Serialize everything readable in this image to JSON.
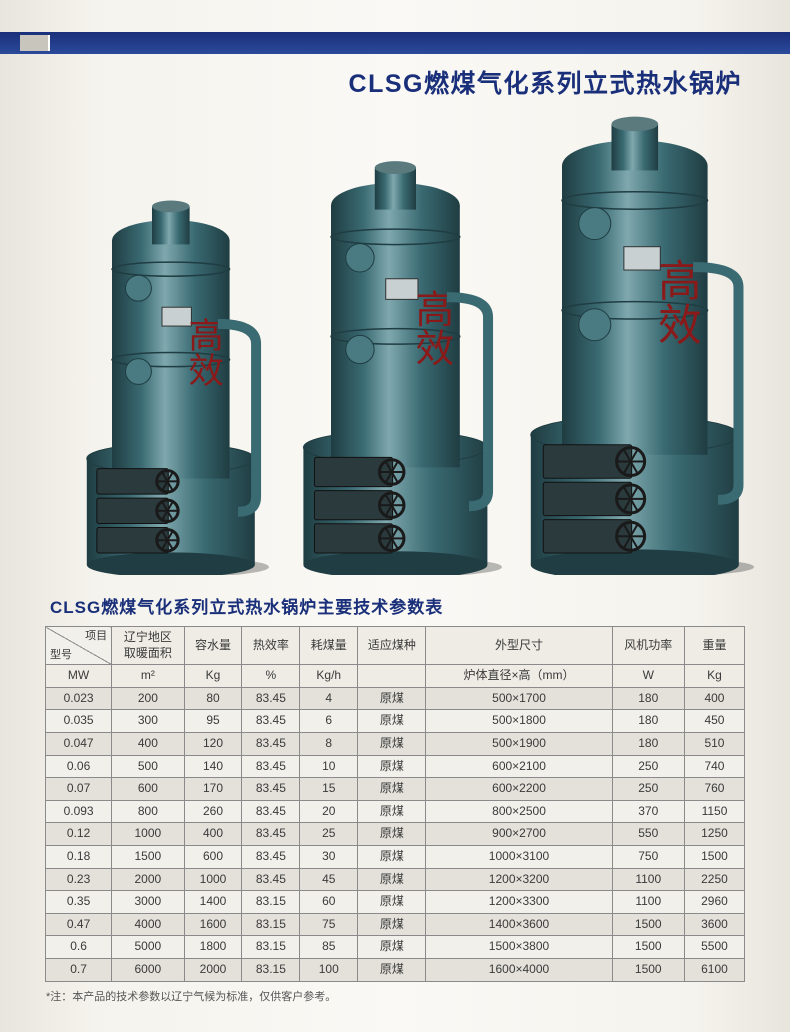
{
  "title": "CLSG燃煤气化系列立式热水锅炉",
  "tableTitle": "CLSG燃煤气化系列立式热水锅炉主要技术参数表",
  "footnote": "*注：本产品的技术参数以辽宁气候为标准，仅供客户参考。",
  "header": {
    "diagTop": "项目",
    "diagBottom": "型号",
    "c1": "辽宁地区\n取暖面积",
    "c2": "容水量",
    "c3": "热效率",
    "c4": "耗煤量",
    "c5": "适应煤种",
    "c6": "外型尺寸",
    "c7": "风机功率",
    "c8": "重量"
  },
  "units": {
    "u0": "MW",
    "u1": "m²",
    "u2": "Kg",
    "u3": "%",
    "u4": "Kg/h",
    "u5": "",
    "u6": "炉体直径×高（mm）",
    "u7": "W",
    "u8": "Kg"
  },
  "rows": [
    {
      "mw": "0.023",
      "area": "200",
      "water": "80",
      "eff": "83.45",
      "coal": "4",
      "type": "原煤",
      "dim": "500×1700",
      "fan": "180",
      "wt": "400"
    },
    {
      "mw": "0.035",
      "area": "300",
      "water": "95",
      "eff": "83.45",
      "coal": "6",
      "type": "原煤",
      "dim": "500×1800",
      "fan": "180",
      "wt": "450"
    },
    {
      "mw": "0.047",
      "area": "400",
      "water": "120",
      "eff": "83.45",
      "coal": "8",
      "type": "原煤",
      "dim": "500×1900",
      "fan": "180",
      "wt": "510"
    },
    {
      "mw": "0.06",
      "area": "500",
      "water": "140",
      "eff": "83.45",
      "coal": "10",
      "type": "原煤",
      "dim": "600×2100",
      "fan": "250",
      "wt": "740"
    },
    {
      "mw": "0.07",
      "area": "600",
      "water": "170",
      "eff": "83.45",
      "coal": "15",
      "type": "原煤",
      "dim": "600×2200",
      "fan": "250",
      "wt": "760"
    },
    {
      "mw": "0.093",
      "area": "800",
      "water": "260",
      "eff": "83.45",
      "coal": "20",
      "type": "原煤",
      "dim": "800×2500",
      "fan": "370",
      "wt": "1150"
    },
    {
      "mw": "0.12",
      "area": "1000",
      "water": "400",
      "eff": "83.45",
      "coal": "25",
      "type": "原煤",
      "dim": "900×2700",
      "fan": "550",
      "wt": "1250"
    },
    {
      "mw": "0.18",
      "area": "1500",
      "water": "600",
      "eff": "83.45",
      "coal": "30",
      "type": "原煤",
      "dim": "1000×3100",
      "fan": "750",
      "wt": "1500"
    },
    {
      "mw": "0.23",
      "area": "2000",
      "water": "1000",
      "eff": "83.45",
      "coal": "45",
      "type": "原煤",
      "dim": "1200×3200",
      "fan": "1100",
      "wt": "2250"
    },
    {
      "mw": "0.35",
      "area": "3000",
      "water": "1400",
      "eff": "83.15",
      "coal": "60",
      "type": "原煤",
      "dim": "1200×3300",
      "fan": "1100",
      "wt": "2960"
    },
    {
      "mw": "0.47",
      "area": "4000",
      "water": "1600",
      "eff": "83.15",
      "coal": "75",
      "type": "原煤",
      "dim": "1400×3600",
      "fan": "1500",
      "wt": "3600"
    },
    {
      "mw": "0.6",
      "area": "5000",
      "water": "1800",
      "eff": "83.15",
      "coal": "85",
      "type": "原煤",
      "dim": "1500×3800",
      "fan": "1500",
      "wt": "5500"
    },
    {
      "mw": "0.7",
      "area": "6000",
      "water": "2000",
      "eff": "83.15",
      "coal": "100",
      "type": "原煤",
      "dim": "1600×4000",
      "fan": "1500",
      "wt": "6100"
    }
  ],
  "boilerStyle": {
    "bodyColor": "#3a6a72",
    "shadeLight": "#7fa8ae",
    "shadeDark": "#1f3d42",
    "hatchColor": "#2a3a3d",
    "portColor": "#4a7a82",
    "textColor": "#8a1a1a"
  },
  "colWidths": {
    "c0": 64,
    "c1": 70,
    "c2": 56,
    "c3": 56,
    "c4": 56,
    "c5": 66,
    "c6": 180,
    "c7": 70,
    "c8": 58
  }
}
